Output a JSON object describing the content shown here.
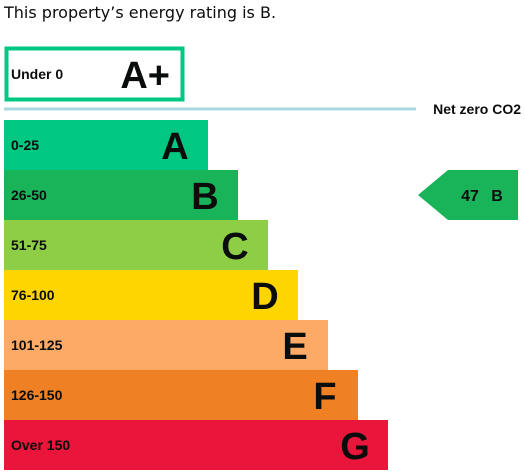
{
  "heading": "This property’s energy rating is B.",
  "chart_data": {
    "type": "bar",
    "title": "",
    "bands": [
      {
        "range": "0-25",
        "letter": "A",
        "color": "#00c781",
        "score_max": 25
      },
      {
        "range": "26-50",
        "letter": "B",
        "color": "#19b459",
        "score_max": 50
      },
      {
        "range": "51-75",
        "letter": "C",
        "color": "#8dce46",
        "score_max": 75
      },
      {
        "range": "76-100",
        "letter": "D",
        "color": "#ffd500",
        "score_max": 100
      },
      {
        "range": "101-125",
        "letter": "E",
        "color": "#fcaa65",
        "score_max": 125
      },
      {
        "range": "126-150",
        "letter": "F",
        "color": "#ef8023",
        "score_max": 150
      },
      {
        "range": "Over 150",
        "letter": "G",
        "color": "#e9153b",
        "score_max": 175
      }
    ],
    "top_band": {
      "range": "Under 0",
      "letter": "A+",
      "border_color": "#00c781"
    },
    "net_zero_label": "Net zero CO2",
    "net_zero_line_color": "#a8d9e0",
    "current": {
      "score": "47",
      "letter": "B",
      "band": "B",
      "color": "#19b459"
    }
  }
}
